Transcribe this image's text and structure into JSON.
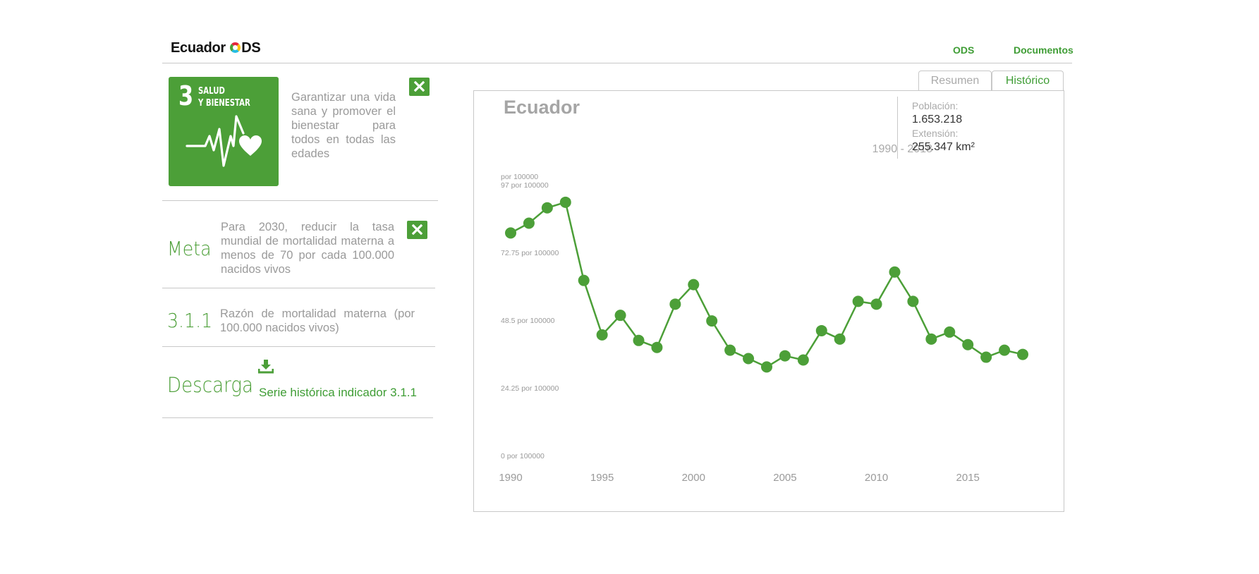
{
  "header": {
    "logo_text_1": "Ecuador",
    "logo_text_2": "DS",
    "nav_ods": "ODS",
    "nav_documents": "Documentos"
  },
  "goal": {
    "number": "3",
    "title_line1": "SALUD",
    "title_line2": "Y BIENESTAR",
    "description": "Garantizar una vida sana y promover el bienestar para todos en todas las edades",
    "color": "#4c9f38"
  },
  "target": {
    "label": "Meta",
    "text": "Para 2030, reducir la tasa mundial de mortalidad materna a menos de 70 por cada 100.000 nacidos vivos"
  },
  "indicator": {
    "code": "3.1.1",
    "text": "Razón de mortalidad materna (por 100.000 nacidos vivos)"
  },
  "download": {
    "label": "Descarga",
    "link": "Serie histórica indicador 3.1.1"
  },
  "tabs": {
    "summary": "Resumen",
    "history": "Histórico",
    "active": "history"
  },
  "panel": {
    "country": "Ecuador",
    "period": "1990 - 2018",
    "population_label": "Población:",
    "population_value": "1.653.218",
    "extension_label": "Extensión:",
    "extension_value": "255.347 km²"
  },
  "chart_data": {
    "type": "line",
    "unit_label": "por 100000",
    "ylim": [
      0,
      97
    ],
    "y_ticks": [
      {
        "value": 0,
        "label": "0 por 100000"
      },
      {
        "value": 24.25,
        "label": "24.25 por 100000"
      },
      {
        "value": 48.5,
        "label": "48.5 por 100000"
      },
      {
        "value": 72.75,
        "label": "72.75 por 100000"
      },
      {
        "value": 97,
        "label": "97 por 100000"
      }
    ],
    "x_ticks": [
      1990,
      1995,
      2000,
      2005,
      2010,
      2015
    ],
    "xlim": [
      1990,
      2018
    ],
    "grid": false,
    "legend": "none",
    "color": "#4c9f38",
    "series": [
      {
        "x": [
          1990,
          1991,
          1992,
          1993,
          1994,
          1995,
          1996,
          1997,
          1998,
          1999,
          2000,
          2001,
          2002,
          2003,
          2004,
          2005,
          2006,
          2007,
          2008,
          2009,
          2010,
          2011,
          2012,
          2013,
          2014,
          2015,
          2016,
          2017,
          2018
        ],
        "values": [
          82,
          85.5,
          91,
          93,
          65,
          45.5,
          52.5,
          43.5,
          41,
          56.5,
          63.5,
          50.5,
          40,
          37,
          34,
          38,
          36.5,
          47,
          44,
          57.5,
          56.5,
          68,
          57.5,
          44,
          46.5,
          42,
          37.5,
          40,
          38.5
        ]
      }
    ]
  }
}
